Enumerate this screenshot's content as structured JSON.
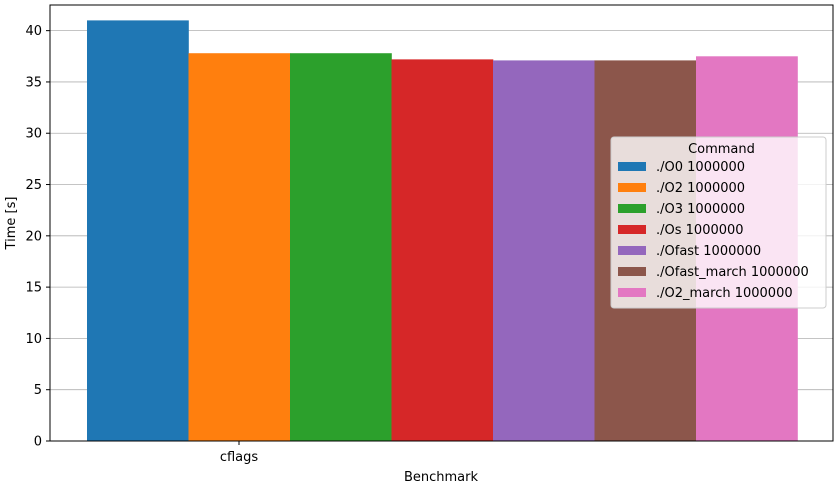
{
  "chart_data": {
    "type": "bar",
    "title": "",
    "xlabel": "Benchmark",
    "ylabel": "Time [s]",
    "categories": [
      "cflags"
    ],
    "ylim": [
      0,
      42.5
    ],
    "yticks": [
      0,
      5,
      10,
      15,
      20,
      25,
      30,
      35,
      40
    ],
    "grid": "horizontal",
    "legend": {
      "title": "Command",
      "placement": "right"
    },
    "series": [
      {
        "name": "./O0 1000000",
        "values": [
          41.0
        ],
        "color": "#1f77b4"
      },
      {
        "name": "./O2 1000000",
        "values": [
          37.8
        ],
        "color": "#ff7f0e"
      },
      {
        "name": "./O3 1000000",
        "values": [
          37.8
        ],
        "color": "#2ca02c"
      },
      {
        "name": "./Os 1000000",
        "values": [
          37.2
        ],
        "color": "#d62728"
      },
      {
        "name": "./Ofast 1000000",
        "values": [
          37.1
        ],
        "color": "#9467bd"
      },
      {
        "name": "./Ofast_march 1000000",
        "values": [
          37.1
        ],
        "color": "#8c564b"
      },
      {
        "name": "./O2_march 1000000",
        "values": [
          37.5
        ],
        "color": "#e377c2"
      }
    ]
  }
}
